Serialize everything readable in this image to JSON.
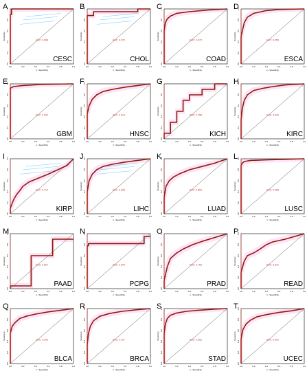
{
  "figure": {
    "xlabel": "1 - Specificity",
    "ylabel": "Sensitivity",
    "x_ticks": [
      "0.0",
      "0.2",
      "0.4",
      "0.6",
      "0.8",
      "1.0"
    ],
    "y_ticks": [
      "0.0",
      "0.2",
      "0.4",
      "0.6",
      "0.8",
      "1.0"
    ],
    "curve_color": "#8b1a0a",
    "ci_color": "#ff66cc",
    "ci_color_alt": "#66ccff",
    "diagonal_color": "#555555"
  },
  "chart_data": [
    {
      "type": "line",
      "letter": "A",
      "label": "CESC",
      "auc": "AUC: 0.988",
      "ci_alt": true,
      "x": [
        0,
        0,
        0.02,
        0.02,
        1
      ],
      "y": [
        0,
        0.9,
        0.9,
        1,
        1
      ]
    },
    {
      "type": "line",
      "letter": "B",
      "label": "CHOL",
      "auc": "AUC: 0.970",
      "ci_alt": true,
      "x": [
        0,
        0,
        0.1,
        0.1,
        0.8,
        0.8,
        1
      ],
      "y": [
        0,
        0.88,
        0.88,
        0.95,
        0.95,
        1,
        1
      ]
    },
    {
      "type": "line",
      "letter": "C",
      "label": "COAD",
      "auc": "AUC: 0.972",
      "ci_alt": false,
      "x": [
        0,
        0,
        0.02,
        0.05,
        0.1,
        0.2,
        0.4,
        0.7,
        1
      ],
      "y": [
        0,
        0.6,
        0.75,
        0.82,
        0.87,
        0.92,
        0.95,
        0.98,
        1
      ]
    },
    {
      "type": "line",
      "letter": "D",
      "label": "ESCA",
      "auc": "AUC: 0.959",
      "ci_alt": false,
      "x": [
        0,
        0,
        0.05,
        0.1,
        0.2,
        0.4,
        0.6,
        1
      ],
      "y": [
        0,
        0.5,
        0.75,
        0.85,
        0.92,
        0.97,
        0.99,
        1
      ]
    },
    {
      "type": "line",
      "letter": "E",
      "label": "GBM",
      "auc": "AUC: 0.992",
      "ci_alt": false,
      "x": [
        0,
        0,
        0.05,
        0.2,
        0.5,
        1
      ],
      "y": [
        0,
        0.92,
        0.95,
        0.97,
        0.99,
        1
      ]
    },
    {
      "type": "line",
      "letter": "F",
      "label": "HNSC",
      "auc": "AUC: 0.914",
      "ci_alt": false,
      "x": [
        0,
        0,
        0.03,
        0.08,
        0.15,
        0.25,
        0.4,
        0.6,
        0.8,
        1
      ],
      "y": [
        0,
        0.45,
        0.6,
        0.72,
        0.8,
        0.86,
        0.9,
        0.94,
        0.97,
        1
      ]
    },
    {
      "type": "line",
      "letter": "G",
      "label": "KICH",
      "auc": "AUC: 0.758",
      "ci_alt": false,
      "x": [
        0,
        0,
        0.1,
        0.1,
        0.2,
        0.2,
        0.3,
        0.3,
        0.4,
        0.4,
        0.6,
        0.6,
        0.8,
        0.8,
        1
      ],
      "y": [
        0,
        0.1,
        0.1,
        0.3,
        0.3,
        0.5,
        0.5,
        0.7,
        0.7,
        0.8,
        0.8,
        0.9,
        0.9,
        1,
        1
      ]
    },
    {
      "type": "line",
      "letter": "H",
      "label": "KIRC",
      "auc": "AUC: 0.930",
      "ci_alt": false,
      "x": [
        0,
        0,
        0.02,
        0.05,
        0.1,
        0.2,
        0.35,
        0.5,
        0.7,
        1
      ],
      "y": [
        0,
        0.35,
        0.55,
        0.7,
        0.8,
        0.88,
        0.92,
        0.95,
        0.98,
        1
      ]
    },
    {
      "type": "line",
      "letter": "I",
      "label": "KIRP",
      "auc": "AUC: 0.712",
      "ci_alt": true,
      "x": [
        0,
        0,
        0.05,
        0.1,
        0.15,
        0.2,
        0.3,
        0.45,
        0.6,
        0.75,
        0.9,
        1
      ],
      "y": [
        0,
        0.1,
        0.25,
        0.35,
        0.42,
        0.5,
        0.58,
        0.65,
        0.72,
        0.8,
        0.88,
        1
      ]
    },
    {
      "type": "line",
      "letter": "J",
      "label": "LIHC",
      "auc": "AUC: 0.908",
      "ci_alt": true,
      "x": [
        0,
        0,
        0.03,
        0.08,
        0.15,
        0.25,
        0.4,
        0.6,
        0.8,
        1
      ],
      "y": [
        0,
        0.4,
        0.6,
        0.72,
        0.8,
        0.86,
        0.9,
        0.94,
        0.97,
        1
      ]
    },
    {
      "type": "line",
      "letter": "K",
      "label": "LUAD",
      "auc": "AUC: 0.863",
      "ci_alt": false,
      "x": [
        0,
        0,
        0.03,
        0.08,
        0.15,
        0.25,
        0.4,
        0.6,
        0.8,
        1
      ],
      "y": [
        0,
        0.3,
        0.5,
        0.6,
        0.67,
        0.73,
        0.8,
        0.86,
        0.92,
        1
      ]
    },
    {
      "type": "line",
      "letter": "L",
      "label": "LUSC",
      "auc": "AUC: 0.988",
      "ci_alt": false,
      "x": [
        0,
        0,
        0.02,
        0.05,
        0.15,
        0.4,
        0.7,
        1
      ],
      "y": [
        0,
        0.88,
        0.92,
        0.95,
        0.97,
        0.98,
        0.99,
        1
      ]
    },
    {
      "type": "line",
      "letter": "M",
      "label": "PAAD",
      "auc": "AUC: 0.667",
      "ci_alt": false,
      "x": [
        0,
        0,
        0.33,
        0.33,
        0.67,
        0.67,
        1
      ],
      "y": [
        0,
        0.05,
        0.05,
        0.6,
        0.6,
        0.9,
        0.9
      ]
    },
    {
      "type": "line",
      "letter": "N",
      "label": "PCPG",
      "auc": "AUC: 0.909",
      "ci_alt": false,
      "x": [
        0,
        0,
        0.02,
        0.02,
        0.9,
        0.9,
        1
      ],
      "y": [
        0,
        0.78,
        0.78,
        0.82,
        0.82,
        0.95,
        0.95
      ]
    },
    {
      "type": "line",
      "letter": "O",
      "label": "PRAD",
      "auc": "AUC: 0.753",
      "ci_alt": false,
      "x": [
        0,
        0,
        0.05,
        0.1,
        0.2,
        0.3,
        0.45,
        0.6,
        0.8,
        1
      ],
      "y": [
        0,
        0.15,
        0.4,
        0.55,
        0.65,
        0.72,
        0.8,
        0.86,
        0.93,
        1
      ]
    },
    {
      "type": "line",
      "letter": "P",
      "label": "READ",
      "auc": "AUC: 0.841",
      "ci_alt": false,
      "x": [
        0,
        0,
        0.05,
        0.1,
        0.2,
        0.3,
        0.4,
        0.5,
        0.7,
        0.85,
        1
      ],
      "y": [
        0,
        0.3,
        0.5,
        0.6,
        0.65,
        0.72,
        0.8,
        0.85,
        0.9,
        0.95,
        1
      ]
    },
    {
      "type": "line",
      "letter": "Q",
      "label": "BLCA",
      "auc": "AUC: 0.906",
      "ci_alt": false,
      "x": [
        0,
        0,
        0.03,
        0.08,
        0.15,
        0.25,
        0.4,
        0.6,
        0.8,
        1
      ],
      "y": [
        0,
        0.55,
        0.68,
        0.75,
        0.82,
        0.86,
        0.9,
        0.94,
        0.97,
        1
      ]
    },
    {
      "type": "line",
      "letter": "R",
      "label": "BRCA",
      "auc": "AUC: 0.917",
      "ci_alt": false,
      "x": [
        0,
        0,
        0.02,
        0.05,
        0.1,
        0.2,
        0.35,
        0.55,
        0.8,
        1
      ],
      "y": [
        0,
        0.35,
        0.55,
        0.68,
        0.78,
        0.86,
        0.91,
        0.95,
        0.98,
        1
      ]
    },
    {
      "type": "line",
      "letter": "S",
      "label": "STAD",
      "auc": "AUC: 0.952",
      "ci_alt": false,
      "x": [
        0,
        0,
        0.02,
        0.05,
        0.1,
        0.2,
        0.35,
        0.55,
        0.8,
        1
      ],
      "y": [
        0,
        0.55,
        0.72,
        0.82,
        0.88,
        0.92,
        0.95,
        0.97,
        0.99,
        1
      ]
    },
    {
      "type": "line",
      "letter": "T",
      "label": "UCEC",
      "auc": "AUC: 0.902",
      "ci_alt": false,
      "x": [
        0,
        0,
        0.03,
        0.08,
        0.15,
        0.25,
        0.4,
        0.6,
        0.8,
        1
      ],
      "y": [
        0,
        0.45,
        0.62,
        0.72,
        0.79,
        0.85,
        0.89,
        0.93,
        0.96,
        1
      ]
    }
  ]
}
